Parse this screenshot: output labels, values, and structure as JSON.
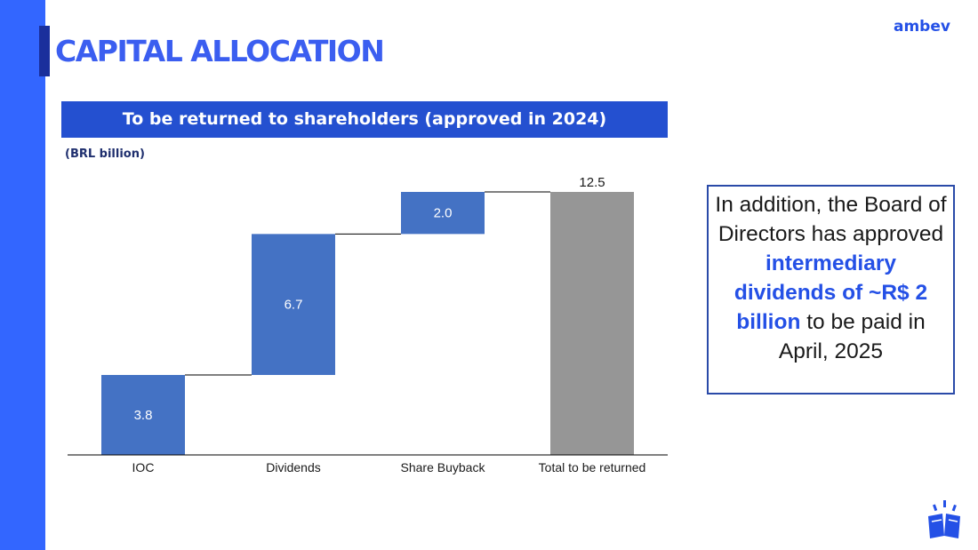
{
  "header": {
    "title": "CAPITAL ALLOCATION",
    "logo": "ambev"
  },
  "chart_header": "To be returned to shareholders (approved in 2024)",
  "units_label": "(BRL billion)",
  "chart_data": {
    "type": "bar",
    "subtype": "waterfall",
    "title": "To be returned to shareholders (approved in 2024)",
    "ylabel": "(BRL billion)",
    "categories": [
      "IOC",
      "Dividends",
      "Share Buyback",
      "Total to be returned"
    ],
    "values": [
      3.8,
      6.7,
      2.0,
      12.5
    ],
    "bases": [
      0,
      3.8,
      10.5,
      0
    ],
    "labels": [
      "3.8",
      "6.7",
      "2.0",
      "12.5"
    ],
    "is_total": [
      false,
      false,
      false,
      true
    ],
    "ylim": [
      0,
      12.5
    ],
    "colors": {
      "step": "#4472c4",
      "total": "#969696"
    }
  },
  "callout": {
    "pre": "In addition, the Board of Directors has approved",
    "highlight": "intermediary dividends of ~R$ 2 billion",
    "post": "to be paid in April, 2025"
  },
  "colors": {
    "brand_blue": "#3366ff",
    "header_blue": "#2450d0",
    "title_blue": "#3b5ef0"
  },
  "icons": {
    "logo_mark": "cheers-cans-icon"
  }
}
